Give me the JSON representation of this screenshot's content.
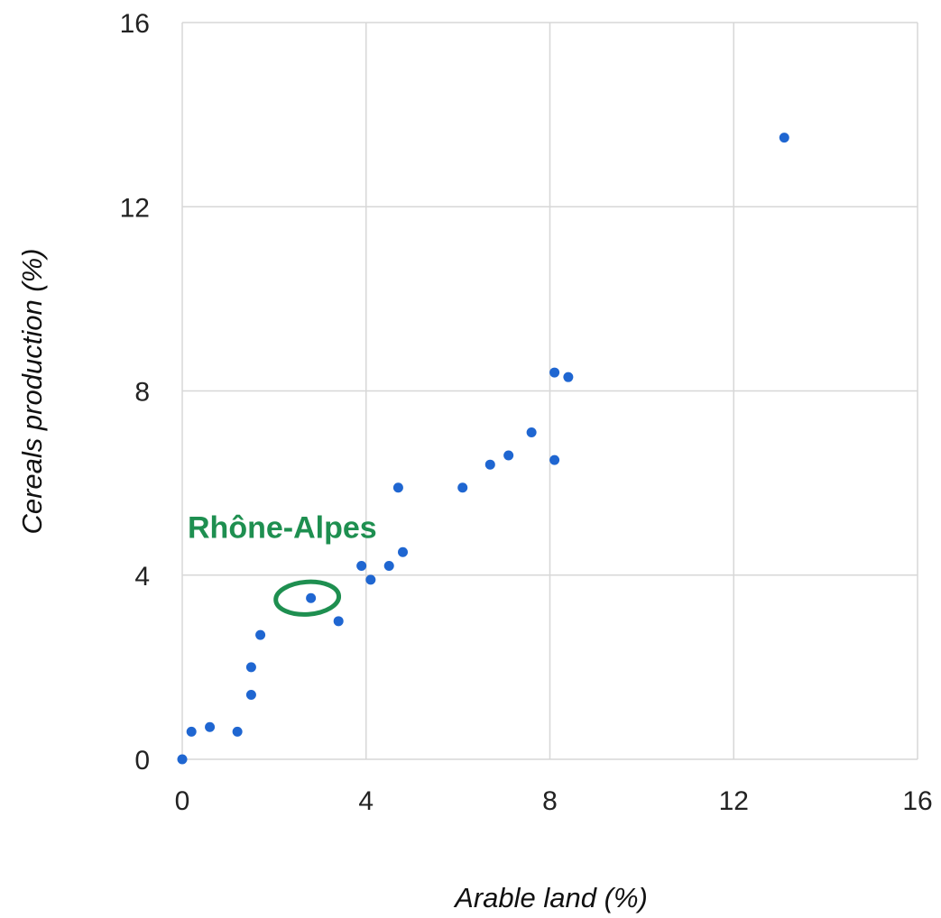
{
  "chart_data": {
    "type": "scatter",
    "title": "",
    "xlabel": "Arable land (%)",
    "ylabel": "Cereals production (%)",
    "xlim": [
      0,
      16
    ],
    "ylim": [
      0,
      16
    ],
    "xticks": [
      0,
      4,
      8,
      12,
      16
    ],
    "yticks": [
      0,
      4,
      8,
      12,
      16
    ],
    "xtick_labels": [
      "0",
      "4",
      "8",
      "12",
      "16"
    ],
    "ytick_labels": [
      "0",
      "4",
      "8",
      "12",
      "16"
    ],
    "grid": true,
    "legend": "none",
    "series": [
      {
        "color": "#1f66d1",
        "points": [
          {
            "x": 0.0,
            "y": 0.0
          },
          {
            "x": 0.2,
            "y": 0.6
          },
          {
            "x": 0.6,
            "y": 0.7
          },
          {
            "x": 1.2,
            "y": 0.6
          },
          {
            "x": 1.5,
            "y": 1.4
          },
          {
            "x": 1.5,
            "y": 2.0
          },
          {
            "x": 1.7,
            "y": 2.7
          },
          {
            "x": 2.8,
            "y": 3.5
          },
          {
            "x": 3.4,
            "y": 3.0
          },
          {
            "x": 3.9,
            "y": 4.2
          },
          {
            "x": 4.1,
            "y": 3.9
          },
          {
            "x": 4.5,
            "y": 4.2
          },
          {
            "x": 4.8,
            "y": 4.5
          },
          {
            "x": 4.7,
            "y": 5.9
          },
          {
            "x": 6.1,
            "y": 5.9
          },
          {
            "x": 6.7,
            "y": 6.4
          },
          {
            "x": 7.1,
            "y": 6.6
          },
          {
            "x": 7.6,
            "y": 7.1
          },
          {
            "x": 8.1,
            "y": 6.5
          },
          {
            "x": 8.1,
            "y": 8.4
          },
          {
            "x": 8.4,
            "y": 8.3
          },
          {
            "x": 13.1,
            "y": 13.5
          }
        ]
      }
    ],
    "annotations": [
      {
        "text": "Rhône-Alpes",
        "x": 2.8,
        "y": 3.5,
        "color": "#1e8f50",
        "highlight": "circle"
      }
    ]
  }
}
